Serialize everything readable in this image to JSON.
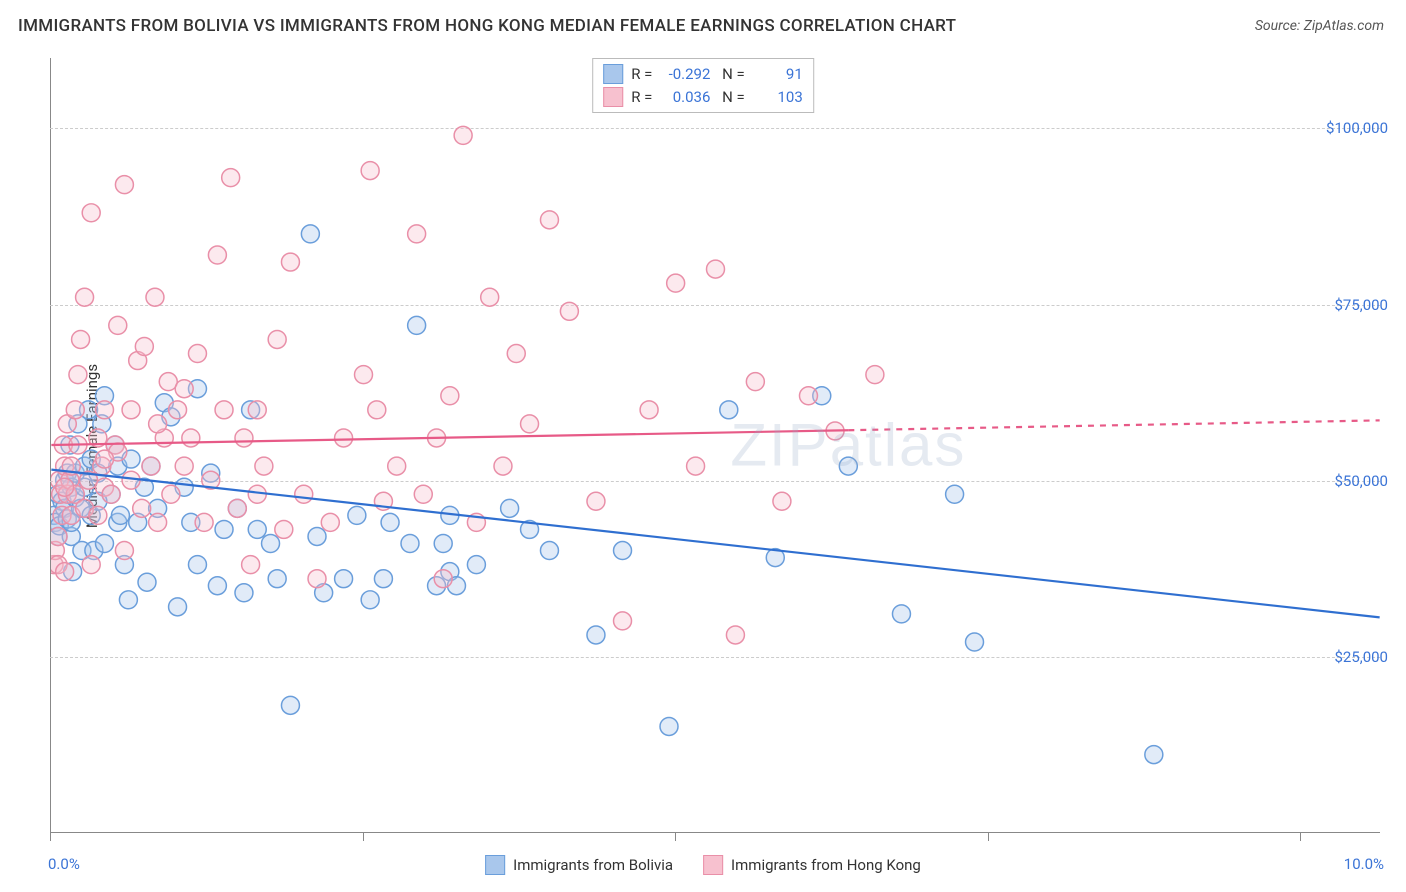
{
  "title": "IMMIGRANTS FROM BOLIVIA VS IMMIGRANTS FROM HONG KONG MEDIAN FEMALE EARNINGS CORRELATION CHART",
  "source": "Source: ZipAtlas.com",
  "watermark": "ZIPatlas",
  "ylabel": "Median Female Earnings",
  "chart": {
    "type": "scatter",
    "xlim": [
      0,
      10
    ],
    "ylim": [
      0,
      110000
    ],
    "xtick_positions": [
      0,
      2.35,
      4.7,
      7.05,
      9.4
    ],
    "xtick_labels_shown": {
      "min": "0.0%",
      "max": "10.0%"
    },
    "ytick_positions": [
      25000,
      50000,
      75000,
      100000
    ],
    "ytick_labels": [
      "$25,000",
      "$50,000",
      "$75,000",
      "$100,000"
    ],
    "grid_color": "#cccccc",
    "axis_color": "#888888",
    "background_color": "#ffffff",
    "marker_radius": 9,
    "marker_fill_opacity": 0.35,
    "marker_stroke_width": 1.5,
    "trend_line_width": 2.2
  },
  "series": [
    {
      "name": "Immigrants from Bolivia",
      "color_fill": "#a9c7ec",
      "color_stroke": "#6a9edb",
      "trend_color": "#2f6fd0",
      "R": "-0.292",
      "N": "91",
      "trend": {
        "x1": 0,
        "y1": 51500,
        "x2": 10,
        "y2": 30500,
        "dash_after_x": null
      },
      "points": [
        [
          0.02,
          45000
        ],
        [
          0.03,
          44000
        ],
        [
          0.05,
          48000
        ],
        [
          0.05,
          42000
        ],
        [
          0.06,
          43500
        ],
        [
          0.08,
          47000
        ],
        [
          0.1,
          50000
        ],
        [
          0.1,
          46000
        ],
        [
          0.12,
          51000
        ],
        [
          0.12,
          44500
        ],
        [
          0.14,
          55000
        ],
        [
          0.15,
          49000
        ],
        [
          0.15,
          42000
        ],
        [
          0.16,
          37000
        ],
        [
          0.18,
          51000
        ],
        [
          0.18,
          47500
        ],
        [
          0.2,
          58000
        ],
        [
          0.22,
          46000
        ],
        [
          0.23,
          40000
        ],
        [
          0.25,
          52000
        ],
        [
          0.25,
          49000
        ],
        [
          0.28,
          60000
        ],
        [
          0.3,
          45000
        ],
        [
          0.3,
          53000
        ],
        [
          0.32,
          40000
        ],
        [
          0.35,
          51000
        ],
        [
          0.38,
          58000
        ],
        [
          0.4,
          41000
        ],
        [
          0.4,
          62000
        ],
        [
          0.45,
          48000
        ],
        [
          0.48,
          55000
        ],
        [
          0.5,
          44000
        ],
        [
          0.5,
          52000
        ],
        [
          0.52,
          45000
        ],
        [
          0.55,
          38000
        ],
        [
          0.58,
          33000
        ],
        [
          0.6,
          53000
        ],
        [
          0.65,
          44000
        ],
        [
          0.7,
          49000
        ],
        [
          0.72,
          35500
        ],
        [
          0.75,
          52000
        ],
        [
          0.8,
          46000
        ],
        [
          0.85,
          61000
        ],
        [
          0.9,
          59000
        ],
        [
          0.95,
          32000
        ],
        [
          1.0,
          49000
        ],
        [
          1.05,
          44000
        ],
        [
          1.1,
          38000
        ],
        [
          1.1,
          63000
        ],
        [
          1.2,
          51000
        ],
        [
          1.25,
          35000
        ],
        [
          1.3,
          43000
        ],
        [
          1.4,
          46000
        ],
        [
          1.45,
          34000
        ],
        [
          1.5,
          60000
        ],
        [
          1.55,
          43000
        ],
        [
          1.65,
          41000
        ],
        [
          1.7,
          36000
        ],
        [
          1.8,
          18000
        ],
        [
          1.95,
          85000
        ],
        [
          2.0,
          42000
        ],
        [
          2.05,
          34000
        ],
        [
          2.2,
          36000
        ],
        [
          2.3,
          45000
        ],
        [
          2.4,
          33000
        ],
        [
          2.5,
          36000
        ],
        [
          2.55,
          44000
        ],
        [
          2.7,
          41000
        ],
        [
          2.75,
          72000
        ],
        [
          2.9,
          35000
        ],
        [
          2.95,
          41000
        ],
        [
          3.0,
          37000
        ],
        [
          3.0,
          45000
        ],
        [
          3.05,
          35000
        ],
        [
          3.2,
          38000
        ],
        [
          3.45,
          46000
        ],
        [
          3.6,
          43000
        ],
        [
          3.75,
          40000
        ],
        [
          4.1,
          28000
        ],
        [
          4.3,
          40000
        ],
        [
          4.65,
          15000
        ],
        [
          5.1,
          60000
        ],
        [
          5.45,
          39000
        ],
        [
          5.8,
          62000
        ],
        [
          6.0,
          52000
        ],
        [
          6.4,
          31000
        ],
        [
          6.8,
          48000
        ],
        [
          6.95,
          27000
        ],
        [
          8.3,
          11000
        ],
        [
          0.15,
          44000
        ],
        [
          0.35,
          47000
        ]
      ]
    },
    {
      "name": "Immigrants from Hong Kong",
      "color_fill": "#f7c1cf",
      "color_stroke": "#e98fa8",
      "trend_color": "#e75a87",
      "R": "0.036",
      "N": "103",
      "trend": {
        "x1": 0,
        "y1": 55000,
        "x2": 10,
        "y2": 58500,
        "dash_after_x": 6.0
      },
      "points": [
        [
          0.02,
          38000
        ],
        [
          0.03,
          40000
        ],
        [
          0.05,
          42000
        ],
        [
          0.05,
          38000
        ],
        [
          0.06,
          50000
        ],
        [
          0.07,
          48000
        ],
        [
          0.08,
          45000
        ],
        [
          0.09,
          55000
        ],
        [
          0.1,
          52000
        ],
        [
          0.1,
          37000
        ],
        [
          0.12,
          48000
        ],
        [
          0.12,
          58000
        ],
        [
          0.14,
          50000
        ],
        [
          0.15,
          45000
        ],
        [
          0.15,
          52000
        ],
        [
          0.18,
          60000
        ],
        [
          0.18,
          48000
        ],
        [
          0.2,
          55000
        ],
        [
          0.2,
          65000
        ],
        [
          0.22,
          70000
        ],
        [
          0.25,
          76000
        ],
        [
          0.25,
          46000
        ],
        [
          0.28,
          50000
        ],
        [
          0.3,
          38000
        ],
        [
          0.3,
          88000
        ],
        [
          0.35,
          56000
        ],
        [
          0.35,
          45000
        ],
        [
          0.38,
          52000
        ],
        [
          0.4,
          60000
        ],
        [
          0.4,
          49000
        ],
        [
          0.45,
          48000
        ],
        [
          0.48,
          55000
        ],
        [
          0.5,
          72000
        ],
        [
          0.5,
          54000
        ],
        [
          0.55,
          92000
        ],
        [
          0.55,
          40000
        ],
        [
          0.6,
          60000
        ],
        [
          0.6,
          50000
        ],
        [
          0.65,
          67000
        ],
        [
          0.68,
          46000
        ],
        [
          0.7,
          69000
        ],
        [
          0.75,
          52000
        ],
        [
          0.78,
          76000
        ],
        [
          0.8,
          44000
        ],
        [
          0.85,
          56000
        ],
        [
          0.88,
          64000
        ],
        [
          0.9,
          48000
        ],
        [
          0.95,
          60000
        ],
        [
          1.0,
          52000
        ],
        [
          1.05,
          56000
        ],
        [
          1.1,
          68000
        ],
        [
          1.15,
          44000
        ],
        [
          1.2,
          50000
        ],
        [
          1.25,
          82000
        ],
        [
          1.3,
          60000
        ],
        [
          1.35,
          93000
        ],
        [
          1.4,
          46000
        ],
        [
          1.45,
          56000
        ],
        [
          1.5,
          38000
        ],
        [
          1.55,
          60000
        ],
        [
          1.6,
          52000
        ],
        [
          1.7,
          70000
        ],
        [
          1.75,
          43000
        ],
        [
          1.8,
          81000
        ],
        [
          1.9,
          48000
        ],
        [
          2.0,
          36000
        ],
        [
          2.1,
          44000
        ],
        [
          2.2,
          56000
        ],
        [
          2.35,
          65000
        ],
        [
          2.4,
          94000
        ],
        [
          2.45,
          60000
        ],
        [
          2.5,
          47000
        ],
        [
          2.6,
          52000
        ],
        [
          2.75,
          85000
        ],
        [
          2.8,
          48000
        ],
        [
          2.9,
          56000
        ],
        [
          2.95,
          36000
        ],
        [
          3.0,
          62000
        ],
        [
          3.1,
          99000
        ],
        [
          3.2,
          44000
        ],
        [
          3.3,
          76000
        ],
        [
          3.4,
          52000
        ],
        [
          3.5,
          68000
        ],
        [
          3.6,
          58000
        ],
        [
          3.75,
          87000
        ],
        [
          3.9,
          74000
        ],
        [
          4.1,
          47000
        ],
        [
          4.3,
          30000
        ],
        [
          4.5,
          60000
        ],
        [
          4.7,
          78000
        ],
        [
          4.85,
          52000
        ],
        [
          5.0,
          80000
        ],
        [
          5.15,
          28000
        ],
        [
          5.3,
          64000
        ],
        [
          5.5,
          47000
        ],
        [
          5.7,
          62000
        ],
        [
          5.9,
          57000
        ],
        [
          6.2,
          65000
        ],
        [
          0.1,
          49000
        ],
        [
          0.4,
          53000
        ],
        [
          0.8,
          58000
        ],
        [
          1.0,
          63000
        ],
        [
          1.55,
          48000
        ]
      ]
    }
  ],
  "legend": {
    "item1": "Immigrants from Bolivia",
    "item2": "Immigrants from Hong Kong"
  }
}
